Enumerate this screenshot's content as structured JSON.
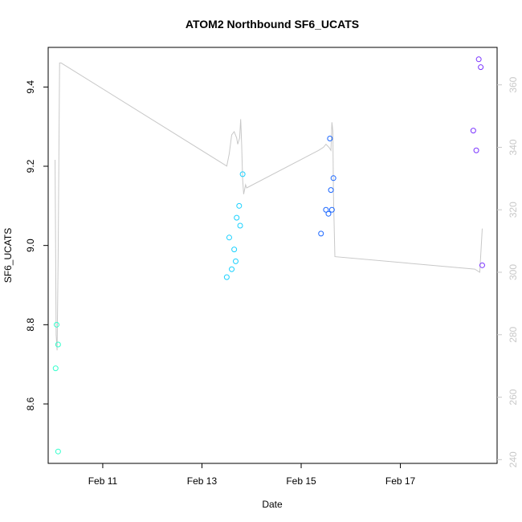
{
  "chart_data": {
    "type": "scatter",
    "title": "ATOM2 Northbound SF6_UCATS",
    "xlabel": "Date",
    "ylabel": "SF6_UCATS",
    "x_ticks": [
      "Feb 11",
      "Feb 13",
      "Feb 15",
      "Feb 17"
    ],
    "x_tick_values": [
      11,
      13,
      15,
      17
    ],
    "xlim": [
      9.9,
      18.95
    ],
    "ylim": [
      8.45,
      9.5
    ],
    "y_ticks": [
      8.6,
      8.8,
      9.0,
      9.2,
      9.4
    ],
    "y_tick_labels": [
      "8.6",
      "8.8",
      "9.0",
      "9.2",
      "9.4"
    ],
    "y2lim": [
      238.8,
      372
    ],
    "y2_ticks": [
      240,
      260,
      280,
      300,
      320,
      340,
      360
    ],
    "y2_tick_labels": [
      "240",
      "260",
      "280",
      "300",
      "320",
      "340",
      "360"
    ],
    "grid": false,
    "points": [
      {
        "x": 10.05,
        "y": 8.69,
        "color": "#33ffcc"
      },
      {
        "x": 10.07,
        "y": 8.8,
        "color": "#33ffcc"
      },
      {
        "x": 10.1,
        "y": 8.75,
        "color": "#33ffcc"
      },
      {
        "x": 10.1,
        "y": 8.48,
        "color": "#33ffcc"
      },
      {
        "x": 13.5,
        "y": 8.92,
        "color": "#1ad1ff"
      },
      {
        "x": 13.55,
        "y": 9.02,
        "color": "#1ad1ff"
      },
      {
        "x": 13.6,
        "y": 8.94,
        "color": "#1ad1ff"
      },
      {
        "x": 13.65,
        "y": 8.99,
        "color": "#1ad1ff"
      },
      {
        "x": 13.68,
        "y": 8.96,
        "color": "#1ad1ff"
      },
      {
        "x": 13.7,
        "y": 9.07,
        "color": "#1ad1ff"
      },
      {
        "x": 13.75,
        "y": 9.1,
        "color": "#1ad1ff"
      },
      {
        "x": 13.77,
        "y": 9.05,
        "color": "#1ad1ff"
      },
      {
        "x": 13.82,
        "y": 9.18,
        "color": "#1ad1ff"
      },
      {
        "x": 15.4,
        "y": 9.03,
        "color": "#1a66ff"
      },
      {
        "x": 15.5,
        "y": 9.09,
        "color": "#1a66ff"
      },
      {
        "x": 15.55,
        "y": 9.08,
        "color": "#1a66ff"
      },
      {
        "x": 15.58,
        "y": 9.27,
        "color": "#1a66ff"
      },
      {
        "x": 15.6,
        "y": 9.14,
        "color": "#1a66ff"
      },
      {
        "x": 15.62,
        "y": 9.09,
        "color": "#1a66ff"
      },
      {
        "x": 15.65,
        "y": 9.17,
        "color": "#1a66ff"
      },
      {
        "x": 18.47,
        "y": 9.29,
        "color": "#7a33ff"
      },
      {
        "x": 18.53,
        "y": 9.24,
        "color": "#7a33ff"
      },
      {
        "x": 18.58,
        "y": 9.47,
        "color": "#7a33ff"
      },
      {
        "x": 18.62,
        "y": 9.45,
        "color": "#7a33ff"
      },
      {
        "x": 18.65,
        "y": 8.95,
        "color": "#7a33ff"
      }
    ],
    "secondary_line": {
      "color": "#c8c8c8",
      "x": [
        10.04,
        10.06,
        10.08,
        10.1,
        10.13,
        10.16,
        13.5,
        13.55,
        13.6,
        13.65,
        13.7,
        13.72,
        13.76,
        13.78,
        13.8,
        13.82,
        13.84,
        13.88,
        13.9,
        15.35,
        15.45,
        15.5,
        15.56,
        15.6,
        15.62,
        15.64,
        15.65,
        15.68,
        18.5,
        18.6,
        18.65
      ],
      "y": [
        336,
        280,
        275,
        305,
        367,
        367,
        334,
        338,
        344,
        345,
        343,
        341,
        343,
        349,
        341,
        330,
        325,
        328,
        327,
        339,
        340,
        341,
        340,
        339,
        348,
        345,
        325,
        305,
        301,
        300,
        314
      ]
    }
  }
}
